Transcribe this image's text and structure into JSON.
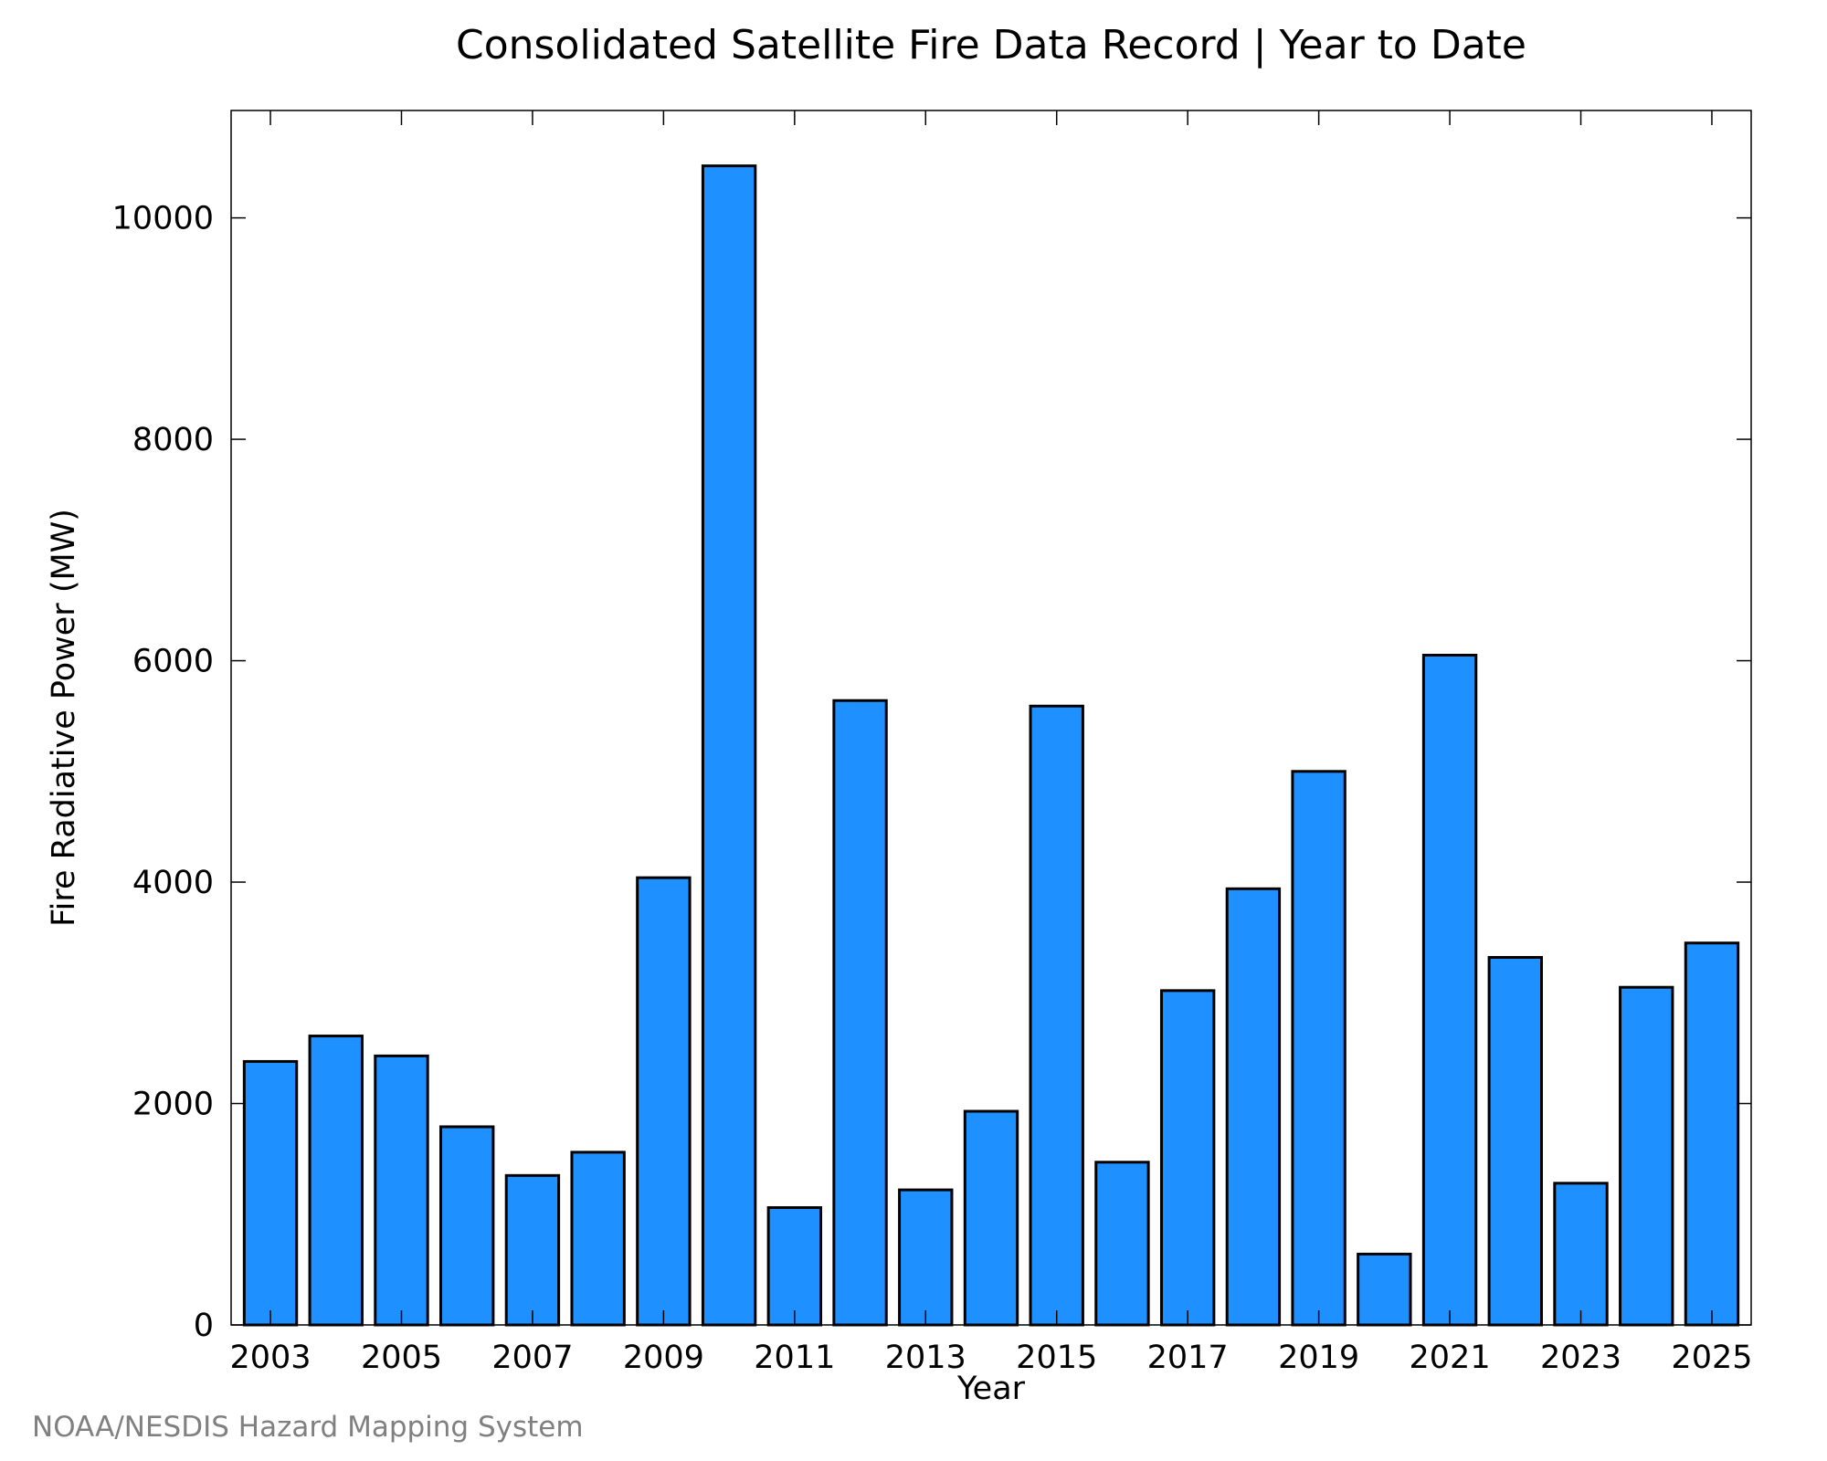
{
  "footer": "NOAA/NESDIS Hazard Mapping System",
  "chart_data": {
    "type": "bar",
    "title": "Consolidated Satellite Fire Data Record | Year to Date",
    "xlabel": "Year",
    "ylabel": "Fire Radiative Power (MW)",
    "categories": [
      "2003",
      "2004",
      "2005",
      "2006",
      "2007",
      "2008",
      "2009",
      "2010",
      "2011",
      "2012",
      "2013",
      "2014",
      "2015",
      "2016",
      "2017",
      "2018",
      "2019",
      "2020",
      "2021",
      "2022",
      "2023",
      "2024",
      "2025"
    ],
    "values": [
      2380,
      2610,
      2430,
      1790,
      1350,
      1560,
      4040,
      10470,
      1060,
      5640,
      1220,
      1930,
      5590,
      1470,
      3020,
      3940,
      5000,
      640,
      6050,
      3320,
      1280,
      3050,
      3450
    ],
    "x_tick_labels": [
      "2003",
      "2005",
      "2007",
      "2009",
      "2011",
      "2013",
      "2015",
      "2017",
      "2019",
      "2021",
      "2023",
      "2025"
    ],
    "y_tick_labels": [
      "0",
      "2000",
      "4000",
      "6000",
      "8000",
      "10000"
    ],
    "y_ticks": [
      0,
      2000,
      4000,
      6000,
      8000,
      10000
    ],
    "ylim": [
      0,
      10970
    ],
    "grid": false,
    "legend": "none",
    "bar_color": "#1e90ff",
    "edge_color": "#000000"
  }
}
